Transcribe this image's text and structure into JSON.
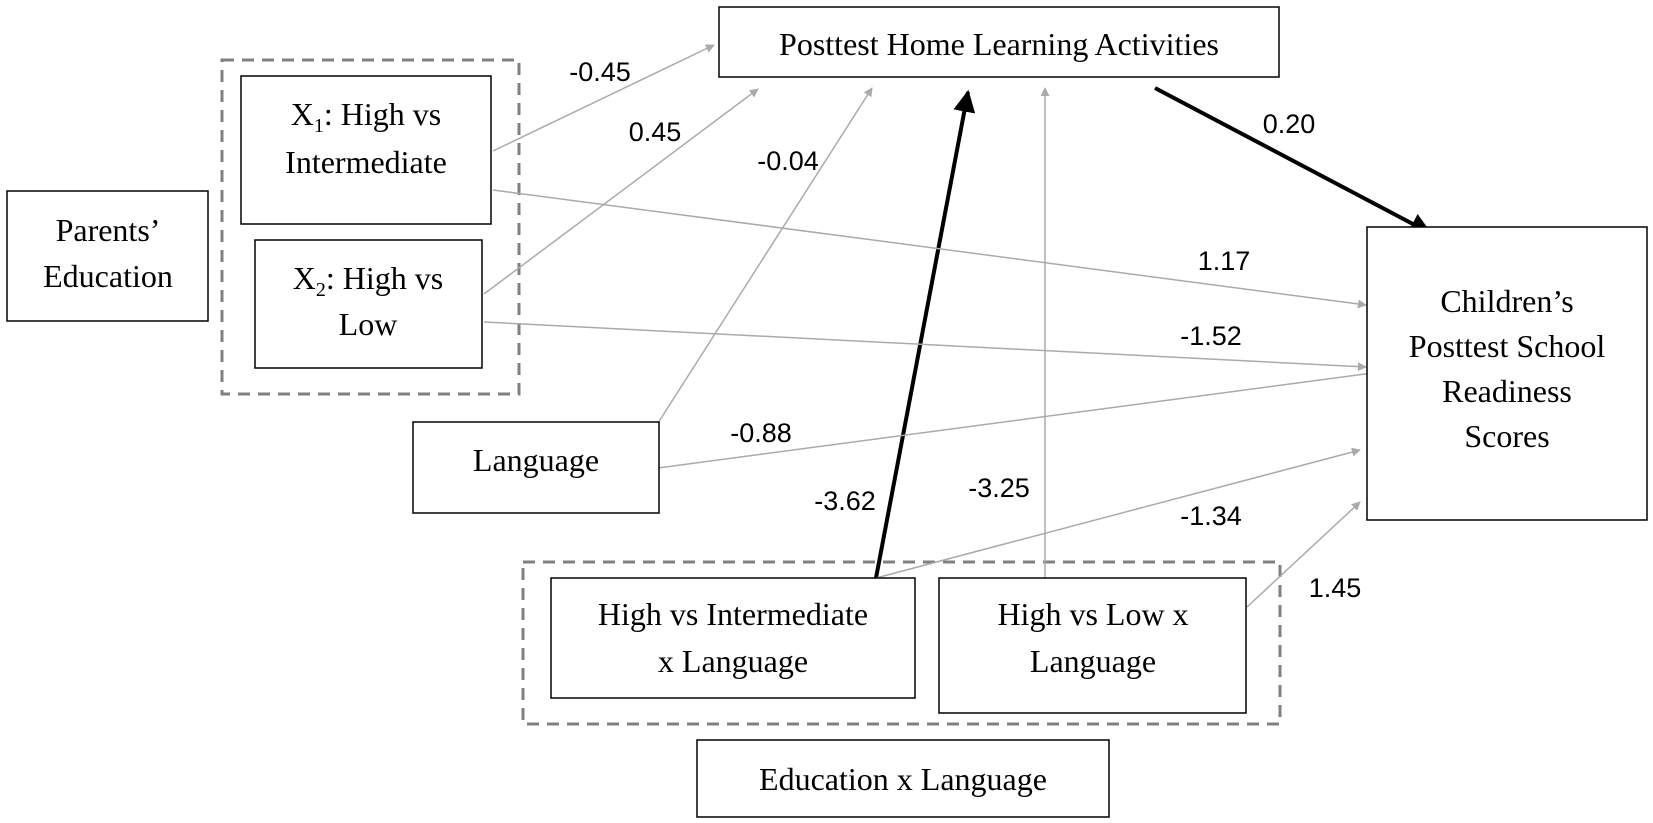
{
  "nodes": {
    "posttest_hla": "Posttest Home Learning Activities",
    "x1_line1_main": "X",
    "x1_line1_sub": "1",
    "x1_line1_rest": ": High vs",
    "x1_line2": "Intermediate",
    "x2_line1_main": "X",
    "x2_line1_sub": "2",
    "x2_line1_rest": ": High vs",
    "x2_line2": "Low",
    "parents_line1": "Parents’",
    "parents_line2": "Education",
    "language": "Language",
    "readiness_line1": "Children’s",
    "readiness_line2": "Posttest School",
    "readiness_line3": "Readiness",
    "readiness_line4": "Scores",
    "int_hi_line1": "High vs Intermediate",
    "int_hi_line2": "x Language",
    "int_hl_line1": "High vs Low x",
    "int_hl_line2": "Language",
    "edu_x_lang": "Education x Language"
  },
  "path_coefficients": {
    "x1_to_hla": "-0.45",
    "x2_to_hla": "0.45",
    "language_to_hla": "-0.04",
    "hla_to_readiness": "0.20",
    "x1_to_readiness": "1.17",
    "x2_to_readiness": "-1.52",
    "language_to_readiness": "-0.88",
    "int_hi_to_hla": "-3.62",
    "int_hi_to_readiness": "-3.25",
    "int_hl_to_hla": "-1.34",
    "int_hl_to_readiness": "1.45"
  },
  "colors": {
    "significant_path": "#000000",
    "nonsignificant_path": "#aaaaaa",
    "group_border": "#808080"
  }
}
